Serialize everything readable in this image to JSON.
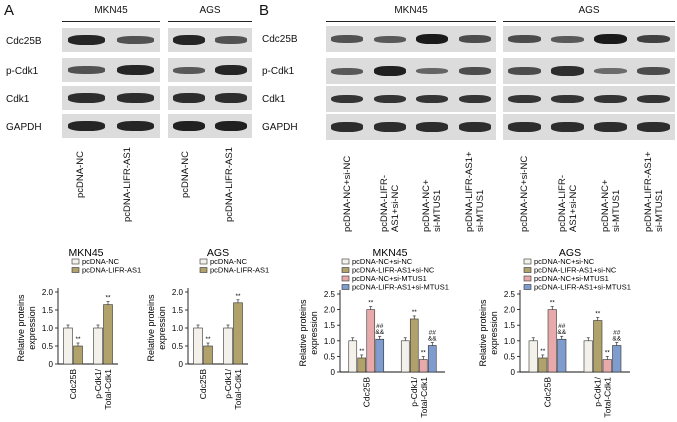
{
  "panelA": {
    "letter": "A",
    "cells": [
      {
        "name": "MKN45"
      },
      {
        "name": "AGS"
      }
    ],
    "rows": [
      "Cdc25B",
      "p-Cdk1",
      "Cdk1",
      "GAPDH"
    ],
    "lanes": [
      "pcDNA-NC",
      "pcDNA-LIFR-AS1"
    ],
    "blot_intensity": {
      "MKN45": [
        [
          0.9,
          0.55
        ],
        [
          0.55,
          0.9
        ],
        [
          0.85,
          0.85
        ],
        [
          0.9,
          0.9
        ]
      ],
      "AGS": [
        [
          0.9,
          0.55
        ],
        [
          0.5,
          0.9
        ],
        [
          0.85,
          0.85
        ],
        [
          0.95,
          0.95
        ]
      ]
    }
  },
  "panelB": {
    "letter": "B",
    "cells": [
      {
        "name": "MKN45"
      },
      {
        "name": "AGS"
      }
    ],
    "rows": [
      "Cdc25B",
      "p-Cdk1",
      "Cdk1",
      "GAPDH"
    ],
    "lanes": [
      [
        "pcDNA-NC+si-NC"
      ],
      [
        "pcDNA-LIFR-",
        "AS1+si-NC"
      ],
      [
        "pcDNA-NC+",
        "si-MTUS1"
      ],
      [
        "pcDNA-LIFR-AS1+",
        "si-MTUS1"
      ]
    ],
    "blot_intensity": {
      "MKN45": [
        [
          0.55,
          0.5,
          1.0,
          0.6
        ],
        [
          0.5,
          0.95,
          0.4,
          0.6
        ],
        [
          0.8,
          0.8,
          0.8,
          0.8
        ],
        [
          0.85,
          0.85,
          0.85,
          0.85
        ]
      ],
      "AGS": [
        [
          0.6,
          0.5,
          1.0,
          0.7
        ],
        [
          0.6,
          0.85,
          0.35,
          0.6
        ],
        [
          0.8,
          0.8,
          0.8,
          0.8
        ],
        [
          0.85,
          0.85,
          0.85,
          0.85
        ]
      ]
    }
  },
  "colors": {
    "c1": "#f4f1ea",
    "c2": "#b0a26a",
    "c3": "#e8a9ab",
    "c4": "#7f9ccf"
  },
  "chart_data": [
    {
      "type": "bar",
      "title": "MKN45",
      "ylabel": "Relative proteins expression",
      "ylim": [
        0,
        2.0
      ],
      "yticks": [
        "0",
        "0.5",
        "1.0",
        "1.5",
        "2.0"
      ],
      "categories": [
        "Cdc25B",
        "p-Cdk1/ Total-Cdk1"
      ],
      "category_lines": [
        [
          "Cdc25B"
        ],
        [
          "p-Cdk1/",
          "Total-Cdk1"
        ]
      ],
      "series": [
        {
          "name": "pcDNA-NC",
          "values": [
            1.0,
            1.0
          ],
          "sig": [
            "",
            ""
          ]
        },
        {
          "name": "pcDNA-LIFR-AS1",
          "values": [
            0.5,
            1.65
          ],
          "sig": [
            "**",
            "**"
          ]
        }
      ]
    },
    {
      "type": "bar",
      "title": "AGS",
      "ylabel": "Relative proteins expression",
      "ylim": [
        0,
        2.0
      ],
      "yticks": [
        "0",
        "0.5",
        "1.0",
        "1.5",
        "2.0"
      ],
      "categories": [
        "Cdc25B",
        "p-Cdk1/ Total-Cdk1"
      ],
      "category_lines": [
        [
          "Cdc25B"
        ],
        [
          "p-Cdk1/",
          "Total-Cdk1"
        ]
      ],
      "series": [
        {
          "name": "pcDNA-NC",
          "values": [
            1.0,
            1.0
          ],
          "sig": [
            "",
            ""
          ]
        },
        {
          "name": "pcDNA-LIFR-AS1",
          "values": [
            0.5,
            1.7
          ],
          "sig": [
            "**",
            "**"
          ]
        }
      ]
    },
    {
      "type": "bar",
      "title": "MKN45",
      "ylabel": "Relative proteins expression",
      "ylim": [
        0,
        2.5
      ],
      "yticks": [
        "0",
        "0.5",
        "1.0",
        "1.5",
        "2.0",
        "2.5"
      ],
      "categories": [
        "Cdc25B",
        "p-Cdk1/ Total-Cdk1"
      ],
      "category_lines": [
        [
          "Cdc25B"
        ],
        [
          "p-Cdk1/",
          "Total-Cdk1"
        ]
      ],
      "series": [
        {
          "name": "pcDNA-NC+si-NC",
          "values": [
            1.0,
            1.0
          ],
          "sig": [
            "",
            ""
          ]
        },
        {
          "name": "pcDNA-LIFR-AS1+si-NC",
          "values": [
            0.45,
            1.7
          ],
          "sig": [
            "**",
            "**"
          ]
        },
        {
          "name": "pcDNA-NC+si-MTUS1",
          "values": [
            2.0,
            0.4
          ],
          "sig": [
            "**",
            "**"
          ]
        },
        {
          "name": "pcDNA-LIFR-AS1+si-MTUS1",
          "values": [
            1.05,
            0.85
          ],
          "sig": [
            "## &&",
            "## &&"
          ]
        }
      ]
    },
    {
      "type": "bar",
      "title": "AGS",
      "ylabel": "Relative proteins expression",
      "ylim": [
        0,
        2.5
      ],
      "yticks": [
        "0",
        "0.5",
        "1.0",
        "1.5",
        "2.0",
        "2.5"
      ],
      "categories": [
        "Cdc25B",
        "p-Cdk1/ Total-Cdk1"
      ],
      "category_lines": [
        [
          "Cdc25B"
        ],
        [
          "p-Cdk1/",
          "Total-Cdk1"
        ]
      ],
      "series": [
        {
          "name": "pcDNA-NC+si-NC",
          "values": [
            1.0,
            1.0
          ],
          "sig": [
            "",
            ""
          ]
        },
        {
          "name": "pcDNA-LIFR-AS1+si-NC",
          "values": [
            0.45,
            1.65
          ],
          "sig": [
            "**",
            "**"
          ]
        },
        {
          "name": "pcDNA-NC+si-MTUS1",
          "values": [
            2.0,
            0.4
          ],
          "sig": [
            "**",
            "**"
          ]
        },
        {
          "name": "pcDNA-LIFR-AS1+si-MTUS1",
          "values": [
            1.05,
            0.85
          ],
          "sig": [
            "## &&",
            "## &&"
          ]
        }
      ]
    }
  ]
}
